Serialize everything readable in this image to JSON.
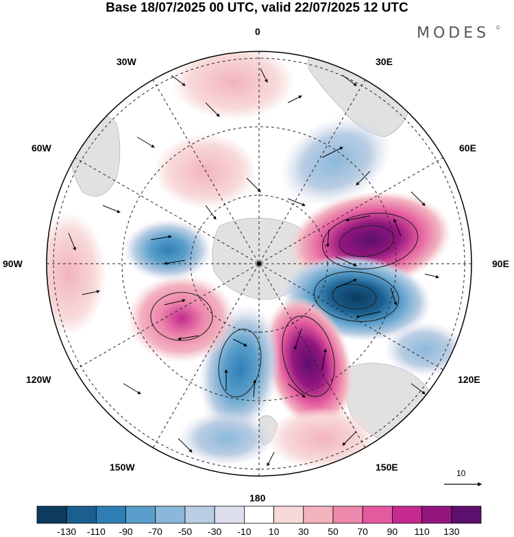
{
  "title": "Base 18/07/2025 00 UTC, valid 22/07/2025 12 UTC",
  "brand": "MODES",
  "brand_mark": "©",
  "longitude_labels": {
    "lon_0": "0",
    "lon_30e": "30E",
    "lon_60e": "60E",
    "lon_90e": "90E",
    "lon_120e": "120E",
    "lon_150e": "150E",
    "lon_180": "180",
    "lon_150w": "150W",
    "lon_120w": "120W",
    "lon_90w": "90W",
    "lon_60w": "60W",
    "lon_30w": "30W"
  },
  "reference_vector": {
    "label": "10"
  },
  "colorbar": {
    "colors": [
      "#0d3b5e",
      "#1a5f8f",
      "#2f7fb6",
      "#5a9fcb",
      "#8bb8da",
      "#b9cde3",
      "#dcdeed",
      "#ffffff",
      "#f8d9d9",
      "#f2b3bf",
      "#ee88ad",
      "#e45a9e",
      "#c52a8e",
      "#93177f",
      "#5d0f6d"
    ],
    "labels": [
      "-130",
      "-110",
      "-90",
      "-70",
      "-50",
      "-30",
      "-10",
      "10",
      "30",
      "50",
      "70",
      "90",
      "110",
      "130"
    ]
  },
  "anomalies": [
    {
      "kind": "positive",
      "value": 130,
      "color": "#5d0f6d"
    },
    {
      "kind": "negative",
      "value": -130,
      "color": "#0d3b5e"
    },
    {
      "kind": "positive",
      "value": 110,
      "color": "#93177f"
    },
    {
      "kind": "negative",
      "value": -90,
      "color": "#2f7fb6"
    },
    {
      "kind": "positive",
      "value": 70,
      "color": "#ee88ad"
    },
    {
      "kind": "negative",
      "value": -50,
      "color": "#8bb8da"
    },
    {
      "kind": "negative",
      "value": -50,
      "color": "#8bb8da"
    },
    {
      "kind": "positive",
      "value": 30,
      "color": "#f8d9d9"
    }
  ]
}
